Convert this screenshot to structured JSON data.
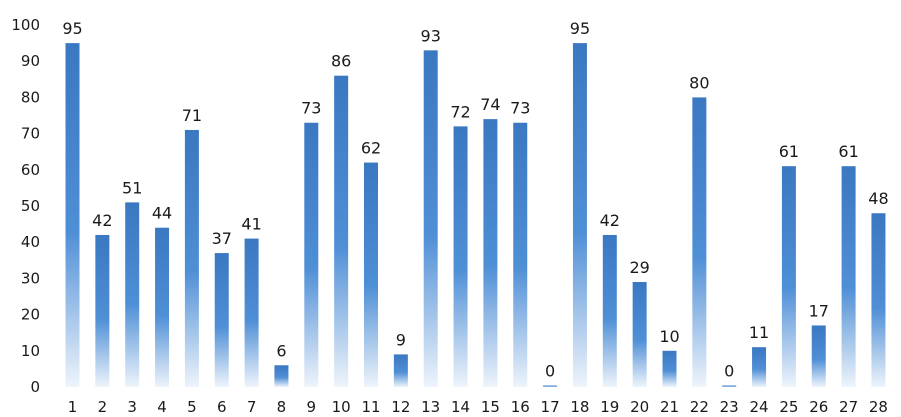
{
  "chart_data": {
    "type": "bar",
    "title": "",
    "xlabel": "",
    "ylabel": "",
    "categories": [
      "1",
      "2",
      "3",
      "4",
      "5",
      "6",
      "7",
      "8",
      "9",
      "10",
      "11",
      "12",
      "13",
      "14",
      "15",
      "16",
      "17",
      "18",
      "19",
      "20",
      "21",
      "22",
      "23",
      "24",
      "25",
      "26",
      "27",
      "28"
    ],
    "values": [
      95,
      42,
      51,
      44,
      71,
      37,
      41,
      6,
      73,
      86,
      62,
      9,
      93,
      72,
      74,
      73,
      0,
      95,
      42,
      29,
      10,
      80,
      0,
      11,
      61,
      17,
      61,
      48
    ],
    "ylim": [
      0,
      100
    ],
    "yticks": [
      0,
      10,
      20,
      30,
      40,
      50,
      60,
      70,
      80,
      90,
      100
    ],
    "ytick_labels": [
      "0",
      "10",
      "20",
      "30",
      "40",
      "50",
      "60",
      "70",
      "80",
      "90",
      "100"
    ],
    "grid": false,
    "legend": "none",
    "colors": {
      "bar_top": "#3a78c2",
      "bar_mid": "#4f8fd6",
      "bar_bottom": "#eef4fb",
      "text": "#1a1a1a"
    }
  }
}
